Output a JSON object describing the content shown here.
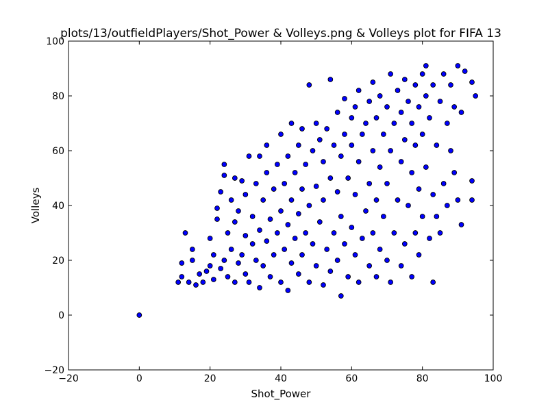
{
  "chart_data": {
    "type": "scatter",
    "title": "plots/13/outfieldPlayers/Shot_Power & Volleys.png & Volleys plot for FIFA 13",
    "xlabel": "Shot_Power",
    "ylabel": "Volleys",
    "xlim": [
      -20,
      100
    ],
    "ylim": [
      -20,
      100
    ],
    "xticks": [
      "−20",
      "0",
      "20",
      "40",
      "60",
      "80",
      "100"
    ],
    "yticks": [
      "−20",
      "0",
      "20",
      "40",
      "60",
      "80",
      "100"
    ],
    "grid": false,
    "marker_color": "#0000ff",
    "marker_edge": "#000000",
    "points": [
      [
        0,
        0
      ],
      [
        11,
        12
      ],
      [
        12,
        14
      ],
      [
        12,
        19
      ],
      [
        13,
        30
      ],
      [
        14,
        12
      ],
      [
        15,
        20
      ],
      [
        15,
        24
      ],
      [
        16,
        11
      ],
      [
        17,
        15
      ],
      [
        18,
        12
      ],
      [
        19,
        16
      ],
      [
        20,
        18
      ],
      [
        20,
        28
      ],
      [
        21,
        13
      ],
      [
        21,
        22
      ],
      [
        22,
        35
      ],
      [
        22,
        39
      ],
      [
        23,
        17
      ],
      [
        23,
        45
      ],
      [
        24,
        20
      ],
      [
        24,
        51
      ],
      [
        24,
        55
      ],
      [
        25,
        14
      ],
      [
        25,
        30
      ],
      [
        26,
        24
      ],
      [
        26,
        42
      ],
      [
        27,
        12
      ],
      [
        27,
        34
      ],
      [
        27,
        50
      ],
      [
        28,
        19
      ],
      [
        28,
        38
      ],
      [
        29,
        22
      ],
      [
        29,
        49
      ],
      [
        30,
        15
      ],
      [
        30,
        29
      ],
      [
        30,
        44
      ],
      [
        31,
        12
      ],
      [
        31,
        58
      ],
      [
        32,
        26
      ],
      [
        32,
        36
      ],
      [
        33,
        20
      ],
      [
        33,
        48
      ],
      [
        34,
        10
      ],
      [
        34,
        31
      ],
      [
        34,
        58
      ],
      [
        35,
        18
      ],
      [
        35,
        42
      ],
      [
        36,
        27
      ],
      [
        36,
        52
      ],
      [
        36,
        62
      ],
      [
        37,
        14
      ],
      [
        37,
        35
      ],
      [
        38,
        22
      ],
      [
        38,
        46
      ],
      [
        39,
        30
      ],
      [
        39,
        55
      ],
      [
        40,
        12
      ],
      [
        40,
        38
      ],
      [
        40,
        66
      ],
      [
        41,
        24
      ],
      [
        41,
        48
      ],
      [
        42,
        9
      ],
      [
        42,
        33
      ],
      [
        42,
        58
      ],
      [
        43,
        19
      ],
      [
        43,
        42
      ],
      [
        43,
        70
      ],
      [
        44,
        28
      ],
      [
        44,
        52
      ],
      [
        45,
        15
      ],
      [
        45,
        37
      ],
      [
        45,
        62
      ],
      [
        46,
        22
      ],
      [
        46,
        46
      ],
      [
        46,
        68
      ],
      [
        47,
        30
      ],
      [
        47,
        55
      ],
      [
        48,
        12
      ],
      [
        48,
        40
      ],
      [
        48,
        84
      ],
      [
        49,
        26
      ],
      [
        49,
        60
      ],
      [
        50,
        18
      ],
      [
        50,
        47
      ],
      [
        50,
        70
      ],
      [
        51,
        34
      ],
      [
        51,
        64
      ],
      [
        52,
        11
      ],
      [
        52,
        42
      ],
      [
        52,
        56
      ],
      [
        53,
        24
      ],
      [
        53,
        68
      ],
      [
        54,
        16
      ],
      [
        54,
        50
      ],
      [
        54,
        86
      ],
      [
        55,
        30
      ],
      [
        55,
        62
      ],
      [
        56,
        20
      ],
      [
        56,
        45
      ],
      [
        56,
        74
      ],
      [
        57,
        7
      ],
      [
        57,
        36
      ],
      [
        57,
        58
      ],
      [
        58,
        26
      ],
      [
        58,
        66
      ],
      [
        58,
        79
      ],
      [
        59,
        14
      ],
      [
        59,
        50
      ],
      [
        60,
        32
      ],
      [
        60,
        62
      ],
      [
        60,
        72
      ],
      [
        61,
        22
      ],
      [
        61,
        44
      ],
      [
        61,
        76
      ],
      [
        62,
        12
      ],
      [
        62,
        56
      ],
      [
        62,
        82
      ],
      [
        63,
        28
      ],
      [
        63,
        66
      ],
      [
        64,
        38
      ],
      [
        64,
        70
      ],
      [
        65,
        18
      ],
      [
        65,
        48
      ],
      [
        65,
        78
      ],
      [
        66,
        30
      ],
      [
        66,
        60
      ],
      [
        66,
        85
      ],
      [
        67,
        14
      ],
      [
        67,
        42
      ],
      [
        67,
        72
      ],
      [
        68,
        24
      ],
      [
        68,
        54
      ],
      [
        68,
        80
      ],
      [
        69,
        36
      ],
      [
        69,
        66
      ],
      [
        70,
        20
      ],
      [
        70,
        48
      ],
      [
        70,
        76
      ],
      [
        71,
        12
      ],
      [
        71,
        60
      ],
      [
        71,
        88
      ],
      [
        72,
        30
      ],
      [
        72,
        70
      ],
      [
        73,
        42
      ],
      [
        73,
        82
      ],
      [
        74,
        18
      ],
      [
        74,
        56
      ],
      [
        74,
        74
      ],
      [
        75,
        26
      ],
      [
        75,
        64
      ],
      [
        75,
        86
      ],
      [
        76,
        40
      ],
      [
        76,
        78
      ],
      [
        77,
        14
      ],
      [
        77,
        52
      ],
      [
        77,
        70
      ],
      [
        78,
        30
      ],
      [
        78,
        62
      ],
      [
        78,
        84
      ],
      [
        79,
        22
      ],
      [
        79,
        46
      ],
      [
        79,
        76
      ],
      [
        80,
        36
      ],
      [
        80,
        66
      ],
      [
        80,
        88
      ],
      [
        81,
        54
      ],
      [
        81,
        80
      ],
      [
        81,
        91
      ],
      [
        82,
        28
      ],
      [
        82,
        72
      ],
      [
        83,
        12
      ],
      [
        83,
        44
      ],
      [
        83,
        84
      ],
      [
        84,
        36
      ],
      [
        84,
        62
      ],
      [
        85,
        30
      ],
      [
        85,
        78
      ],
      [
        86,
        48
      ],
      [
        86,
        88
      ],
      [
        87,
        40
      ],
      [
        87,
        70
      ],
      [
        88,
        60
      ],
      [
        88,
        84
      ],
      [
        89,
        52
      ],
      [
        89,
        76
      ],
      [
        90,
        42
      ],
      [
        90,
        91
      ],
      [
        91,
        33
      ],
      [
        91,
        74
      ],
      [
        92,
        89
      ],
      [
        94,
        49
      ],
      [
        94,
        42
      ],
      [
        94,
        85
      ],
      [
        95,
        80
      ]
    ]
  }
}
